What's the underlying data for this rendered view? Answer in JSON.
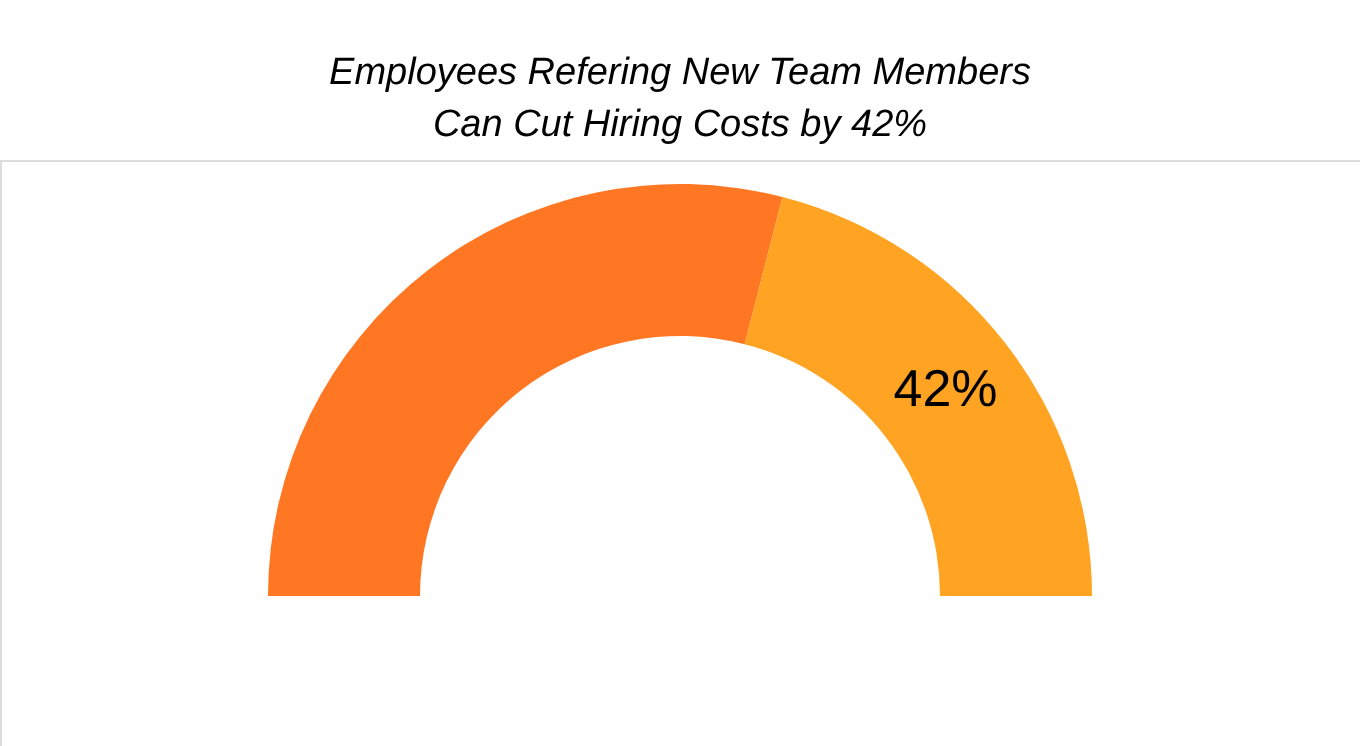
{
  "chart_data": {
    "type": "donut",
    "title": "Employees Refering New Team Members\nCan Cut Hiring Costs by 42%",
    "categories": [
      null,
      null
    ],
    "values": [
      58,
      42
    ],
    "colors": [
      "#ff7722",
      "#ffa322"
    ],
    "value_labels": [
      null,
      "42%"
    ]
  }
}
